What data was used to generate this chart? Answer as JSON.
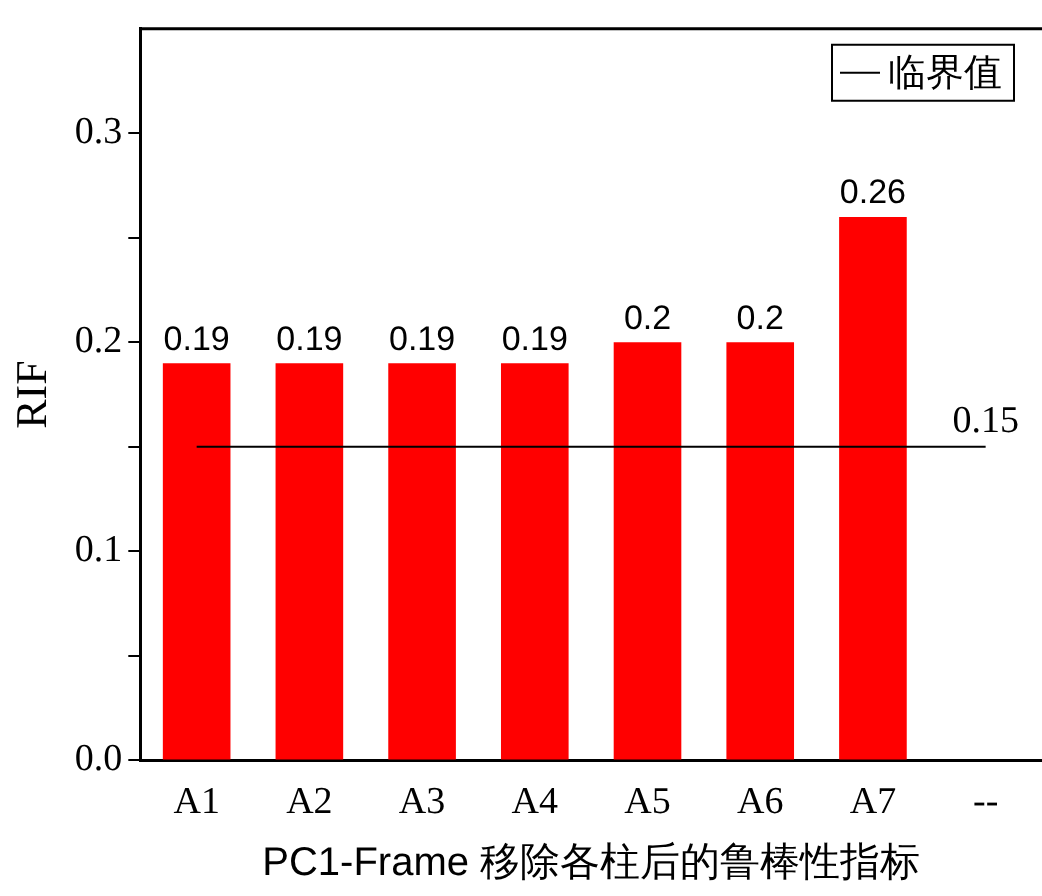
{
  "chart_data": {
    "type": "bar",
    "xlabel": "PC1-Frame 移除各柱后的鲁棒性指标",
    "ylabel": "RIF",
    "categories": [
      "A1",
      "A2",
      "A3",
      "A4",
      "A5",
      "A6",
      "A7",
      "--"
    ],
    "series": [
      {
        "color": "#ff0000",
        "values": [
          0.19,
          0.19,
          0.19,
          0.19,
          0.2,
          0.2,
          0.26,
          null
        ],
        "value_labels": [
          "0.19",
          "0.19",
          "0.19",
          "0.19",
          "0.2",
          "0.2",
          "0.26",
          null
        ]
      },
      {
        "type": "line",
        "name": "临界值",
        "color": "#000000",
        "marker": "none",
        "values": [
          0.15,
          0.15,
          0.15,
          0.15,
          0.15,
          0.15,
          0.15,
          0.15
        ],
        "value_labels": [
          null,
          null,
          null,
          null,
          null,
          null,
          null,
          "0.15"
        ]
      }
    ],
    "legend": "top right",
    "grid": false,
    "ylim": [
      0,
      0.35
    ],
    "yticks": [
      {
        "value": 0,
        "label": "0.0"
      },
      {
        "value": 0.05,
        "label": null
      },
      0.1,
      {
        "value": 0.15,
        "label": null
      },
      0.2,
      {
        "value": 0.25,
        "label": null
      },
      0.3
    ]
  }
}
